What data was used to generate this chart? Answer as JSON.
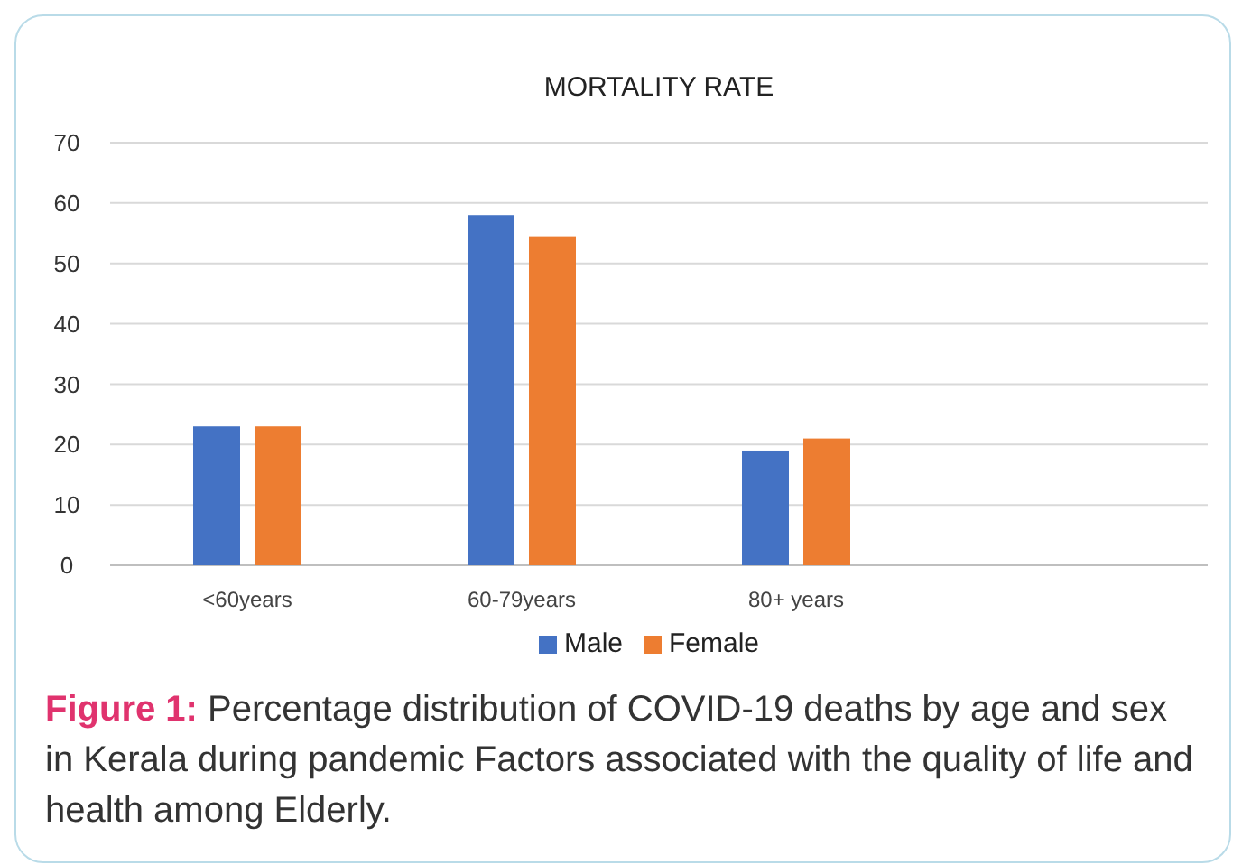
{
  "chart_data": {
    "type": "bar",
    "title": "MORTALITY RATE",
    "categories": [
      "<60years",
      "60-79years",
      "80+ years",
      null
    ],
    "series": [
      {
        "name": "Male",
        "color": "#4472c4",
        "values": [
          23,
          58,
          19,
          null
        ]
      },
      {
        "name": "Female",
        "color": "#ed7d31",
        "values": [
          23,
          54.5,
          21,
          null
        ]
      }
    ],
    "ylim": [
      0,
      70
    ],
    "yticks": [
      0,
      10,
      20,
      30,
      40,
      50,
      60,
      70
    ],
    "grid": "y",
    "legend": "bottom",
    "annotations": [
      "Figure 1:",
      "Percentage distribution of COVID-19 deaths by age and sex in Kerala during pandemic Factors associated with the quality of life and health among Elderly."
    ]
  }
}
